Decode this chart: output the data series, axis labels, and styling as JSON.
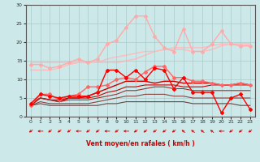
{
  "xlabel": "Vent moyen/en rafales ( km/h )",
  "background_color": "#cce8e8",
  "grid_color": "#aacccc",
  "xlim": [
    -0.5,
    23.5
  ],
  "ylim": [
    0,
    30
  ],
  "yticks": [
    0,
    5,
    10,
    15,
    20,
    25,
    30
  ],
  "xticks": [
    0,
    1,
    2,
    3,
    4,
    5,
    6,
    7,
    8,
    9,
    10,
    11,
    12,
    13,
    14,
    15,
    16,
    17,
    18,
    19,
    20,
    21,
    22,
    23
  ],
  "series": [
    {
      "x": [
        0,
        1,
        2,
        3,
        4,
        5,
        6,
        7,
        8,
        9,
        10,
        11,
        12,
        13,
        14,
        15,
        16,
        17,
        18,
        19,
        20,
        21,
        22,
        23
      ],
      "y": [
        14.5,
        14.5,
        14.5,
        14.5,
        14.5,
        14.5,
        14.5,
        14.5,
        15.5,
        16.0,
        16.5,
        17.0,
        17.5,
        17.5,
        18.0,
        18.5,
        18.5,
        18.5,
        18.5,
        19.0,
        19.5,
        19.5,
        19.5,
        19.5
      ],
      "color": "#ffbbbb",
      "marker": null,
      "lw": 1.0,
      "zorder": 1
    },
    {
      "x": [
        0,
        1,
        2,
        3,
        4,
        5,
        6,
        7,
        8,
        9,
        10,
        11,
        12,
        13,
        14,
        15,
        16,
        17,
        18,
        19,
        20,
        21,
        22,
        23
      ],
      "y": [
        12.5,
        12.5,
        12.5,
        13.0,
        14.0,
        14.5,
        14.5,
        14.5,
        14.5,
        14.5,
        15.0,
        15.5,
        16.5,
        17.5,
        18.0,
        18.0,
        18.0,
        17.5,
        17.5,
        18.0,
        19.0,
        19.5,
        19.5,
        19.5
      ],
      "color": "#ffbbbb",
      "marker": null,
      "lw": 1.0,
      "zorder": 1
    },
    {
      "x": [
        0,
        1,
        2,
        3,
        4,
        5,
        6,
        7,
        8,
        9,
        10,
        11,
        12,
        13,
        14,
        15,
        16,
        17,
        18,
        19,
        20,
        21,
        22,
        23
      ],
      "y": [
        14.0,
        14.0,
        13.0,
        13.5,
        14.5,
        15.5,
        14.5,
        15.5,
        19.5,
        20.5,
        24.0,
        27.0,
        27.0,
        21.5,
        18.5,
        17.5,
        23.5,
        17.5,
        17.5,
        19.5,
        23.0,
        19.5,
        19.0,
        19.0
      ],
      "color": "#ffaaaa",
      "marker": "D",
      "markersize": 2.0,
      "lw": 1.0,
      "zorder": 3
    },
    {
      "x": [
        0,
        1,
        2,
        3,
        4,
        5,
        6,
        7,
        8,
        9,
        10,
        11,
        12,
        13,
        14,
        15,
        16,
        17,
        18,
        19,
        20,
        21,
        22,
        23
      ],
      "y": [
        3.0,
        6.0,
        6.0,
        4.5,
        5.5,
        6.0,
        8.0,
        8.0,
        8.5,
        10.0,
        10.5,
        10.0,
        12.0,
        13.5,
        13.5,
        10.5,
        10.5,
        9.5,
        9.5,
        9.0,
        8.5,
        8.5,
        9.0,
        8.5
      ],
      "color": "#ff6666",
      "marker": "D",
      "markersize": 2.0,
      "lw": 1.0,
      "zorder": 3
    },
    {
      "x": [
        0,
        1,
        2,
        3,
        4,
        5,
        6,
        7,
        8,
        9,
        10,
        11,
        12,
        13,
        14,
        15,
        16,
        17,
        18,
        19,
        20,
        21,
        22,
        23
      ],
      "y": [
        3.5,
        6.0,
        5.5,
        5.0,
        5.5,
        5.5,
        5.5,
        6.5,
        12.5,
        12.5,
        10.5,
        12.5,
        10.0,
        13.0,
        12.5,
        7.5,
        10.5,
        6.5,
        6.5,
        6.5,
        1.0,
        5.0,
        6.0,
        2.0
      ],
      "color": "#ff0000",
      "marker": "D",
      "markersize": 2.0,
      "lw": 1.0,
      "zorder": 4
    },
    {
      "x": [
        0,
        1,
        2,
        3,
        4,
        5,
        6,
        7,
        8,
        9,
        10,
        11,
        12,
        13,
        14,
        15,
        16,
        17,
        18,
        19,
        20,
        21,
        22,
        23
      ],
      "y": [
        3.0,
        5.0,
        4.5,
        4.0,
        5.0,
        5.0,
        5.5,
        6.5,
        7.5,
        8.5,
        9.5,
        9.5,
        9.5,
        9.0,
        9.5,
        9.5,
        9.0,
        9.0,
        9.0,
        9.0,
        8.5,
        8.5,
        9.0,
        8.5
      ],
      "color": "#cc0000",
      "marker": null,
      "lw": 1.0,
      "zorder": 2
    },
    {
      "x": [
        0,
        1,
        2,
        3,
        4,
        5,
        6,
        7,
        8,
        9,
        10,
        11,
        12,
        13,
        14,
        15,
        16,
        17,
        18,
        19,
        20,
        21,
        22,
        23
      ],
      "y": [
        3.5,
        5.0,
        4.5,
        4.5,
        5.0,
        5.0,
        5.0,
        5.5,
        6.5,
        7.0,
        8.0,
        8.0,
        8.5,
        8.5,
        8.5,
        8.5,
        8.0,
        8.0,
        8.0,
        8.5,
        8.5,
        8.5,
        8.5,
        8.5
      ],
      "color": "#cc0000",
      "marker": null,
      "lw": 0.8,
      "zorder": 2
    },
    {
      "x": [
        0,
        1,
        2,
        3,
        4,
        5,
        6,
        7,
        8,
        9,
        10,
        11,
        12,
        13,
        14,
        15,
        16,
        17,
        18,
        19,
        20,
        21,
        22,
        23
      ],
      "y": [
        3.5,
        5.0,
        4.5,
        4.0,
        4.5,
        4.5,
        4.5,
        5.0,
        5.5,
        6.0,
        7.0,
        7.0,
        7.5,
        8.0,
        8.0,
        7.5,
        7.5,
        7.0,
        7.0,
        7.0,
        7.0,
        7.0,
        7.0,
        7.0
      ],
      "color": "#993333",
      "marker": null,
      "lw": 0.8,
      "zorder": 2
    },
    {
      "x": [
        0,
        1,
        2,
        3,
        4,
        5,
        6,
        7,
        8,
        9,
        10,
        11,
        12,
        13,
        14,
        15,
        16,
        17,
        18,
        19,
        20,
        21,
        22,
        23
      ],
      "y": [
        3.0,
        4.0,
        3.5,
        3.5,
        3.5,
        3.5,
        3.5,
        4.0,
        4.5,
        5.0,
        5.5,
        5.5,
        6.0,
        6.0,
        6.0,
        5.5,
        5.5,
        5.0,
        5.0,
        5.0,
        5.0,
        5.0,
        5.0,
        5.0
      ],
      "color": "#884444",
      "marker": null,
      "lw": 0.8,
      "zorder": 2
    },
    {
      "x": [
        0,
        1,
        2,
        3,
        4,
        5,
        6,
        7,
        8,
        9,
        10,
        11,
        12,
        13,
        14,
        15,
        16,
        17,
        18,
        19,
        20,
        21,
        22,
        23
      ],
      "y": [
        3.0,
        3.5,
        3.0,
        3.0,
        3.0,
        3.0,
        3.0,
        3.0,
        3.5,
        3.5,
        4.0,
        4.0,
        4.0,
        4.0,
        4.0,
        4.0,
        4.0,
        3.5,
        3.5,
        3.5,
        3.5,
        3.5,
        3.0,
        3.0
      ],
      "color": "#664444",
      "marker": null,
      "lw": 0.8,
      "zorder": 2
    }
  ],
  "wind_directions": [
    225,
    270,
    225,
    225,
    225,
    270,
    225,
    225,
    270,
    225,
    270,
    225,
    225,
    225,
    225,
    225,
    315,
    315,
    315,
    315,
    270,
    225,
    225,
    225
  ]
}
